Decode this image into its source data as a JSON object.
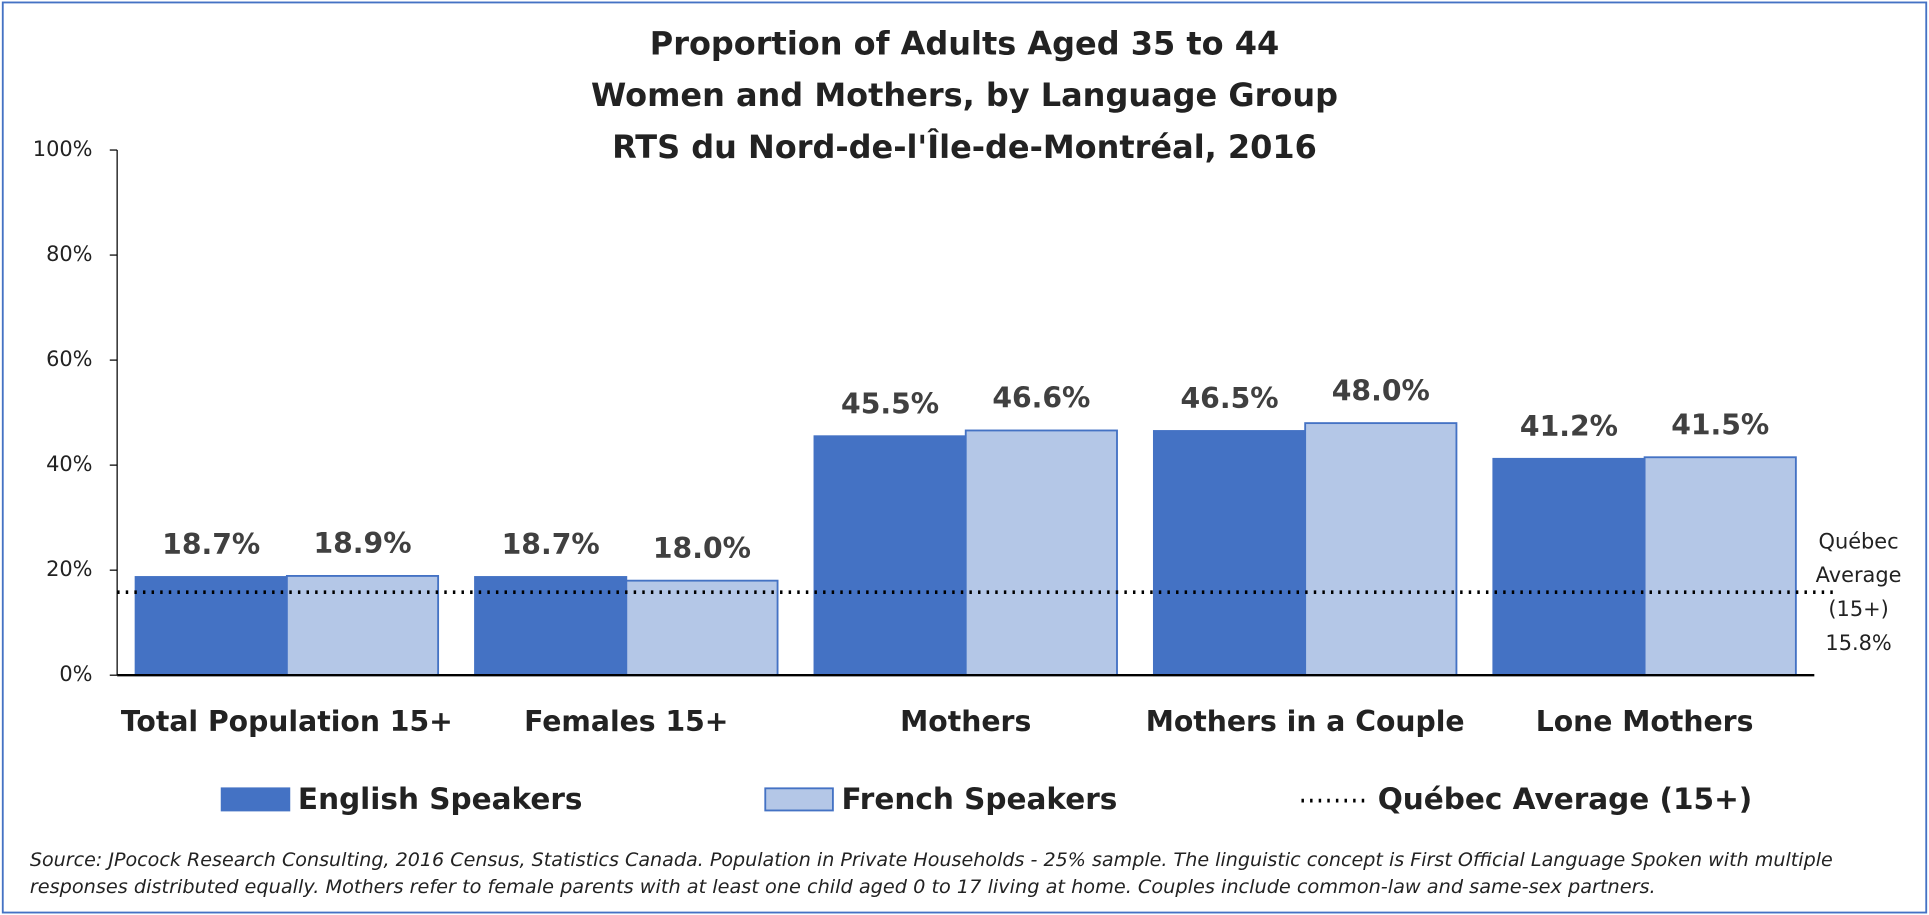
{
  "chart_data": {
    "type": "bar",
    "title": [
      "Proportion of Adults Aged 35 to 44",
      "Women and Mothers, by Language Group",
      "RTS du Nord-de-l'Île-de-Montréal, 2016"
    ],
    "categories": [
      "Total Population 15+",
      "Females 15+",
      "Mothers",
      "Mothers in a Couple",
      "Lone Mothers"
    ],
    "series": [
      {
        "name": "English Speakers",
        "color": "#4472c4",
        "values": [
          18.7,
          18.7,
          45.5,
          46.5,
          41.2
        ],
        "value_labels": [
          "18.7%",
          "18.7%",
          "45.5%",
          "46.5%",
          "41.2%"
        ]
      },
      {
        "name": "French Speakers",
        "color": "#b4c7e7",
        "values": [
          18.9,
          18.0,
          46.6,
          48.0,
          41.5
        ],
        "value_labels": [
          "18.9%",
          "18.0%",
          "46.6%",
          "48.0%",
          "41.5%"
        ]
      }
    ],
    "reference_line": {
      "name": "Québec Average (15+)",
      "value": 15.8,
      "label": [
        "Québec",
        "Average",
        "(15+)",
        "15.8%"
      ]
    },
    "ylim": [
      0,
      100
    ],
    "yticks": [
      {
        "value": 0,
        "label": "0%"
      },
      {
        "value": 20,
        "label": "20%"
      },
      {
        "value": 40,
        "label": "40%"
      },
      {
        "value": 60,
        "label": "60%"
      },
      {
        "value": 80,
        "label": "80%"
      },
      {
        "value": 100,
        "label": "100%"
      }
    ],
    "source": [
      "Source: JPocock Research Consulting, 2016 Census, Statistics Canada. Population in Private Households - 25% sample. The linguistic concept is First Official Language Spoken with multiple",
      "responses distributed equally. Mothers refer to female parents with at least one child aged 0 to 17 living at home. Couples include common-law and same-sex partners."
    ]
  }
}
